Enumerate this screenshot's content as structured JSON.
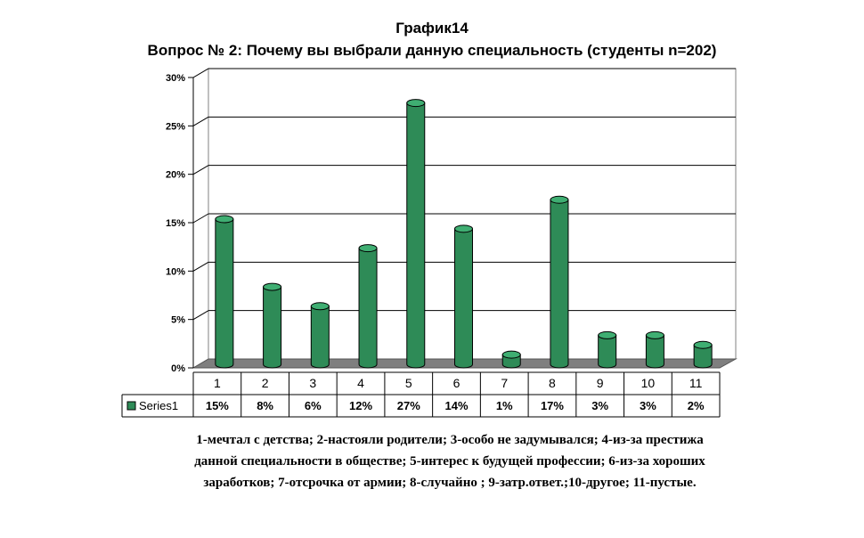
{
  "title": "График14",
  "subtitle": "Вопрос № 2: Почему вы выбрали данную специальность (студенты n=202)",
  "chart_data": {
    "type": "bar",
    "categories": [
      "1",
      "2",
      "3",
      "4",
      "5",
      "6",
      "7",
      "8",
      "9",
      "10",
      "11"
    ],
    "series": [
      {
        "name": "Series1",
        "values": [
          15,
          8,
          6,
          12,
          27,
          14,
          1,
          17,
          3,
          3,
          2
        ],
        "color": "#2e8b57"
      }
    ],
    "value_labels": [
      "15%",
      "8%",
      "6%",
      "12%",
      "27%",
      "14%",
      "1%",
      "17%",
      "3%",
      "3%",
      "2%"
    ],
    "ylim": [
      0,
      30
    ],
    "yticks": [
      "0%",
      "5%",
      "10%",
      "15%",
      "20%",
      "25%",
      "30%"
    ],
    "grid": true,
    "data_table": true,
    "style": "3d-cylinder"
  },
  "caption": "1-мечтал с детства; 2-настояли родители; 3-особо не задумывался; 4-из-за престижа данной специальности в обществе; 5-интерес к будущей профессии; 6-из-за хороших заработков; 7-отсрочка от армии; 8-случайно ; 9-затр.ответ.;10-другое; 11-пустые."
}
